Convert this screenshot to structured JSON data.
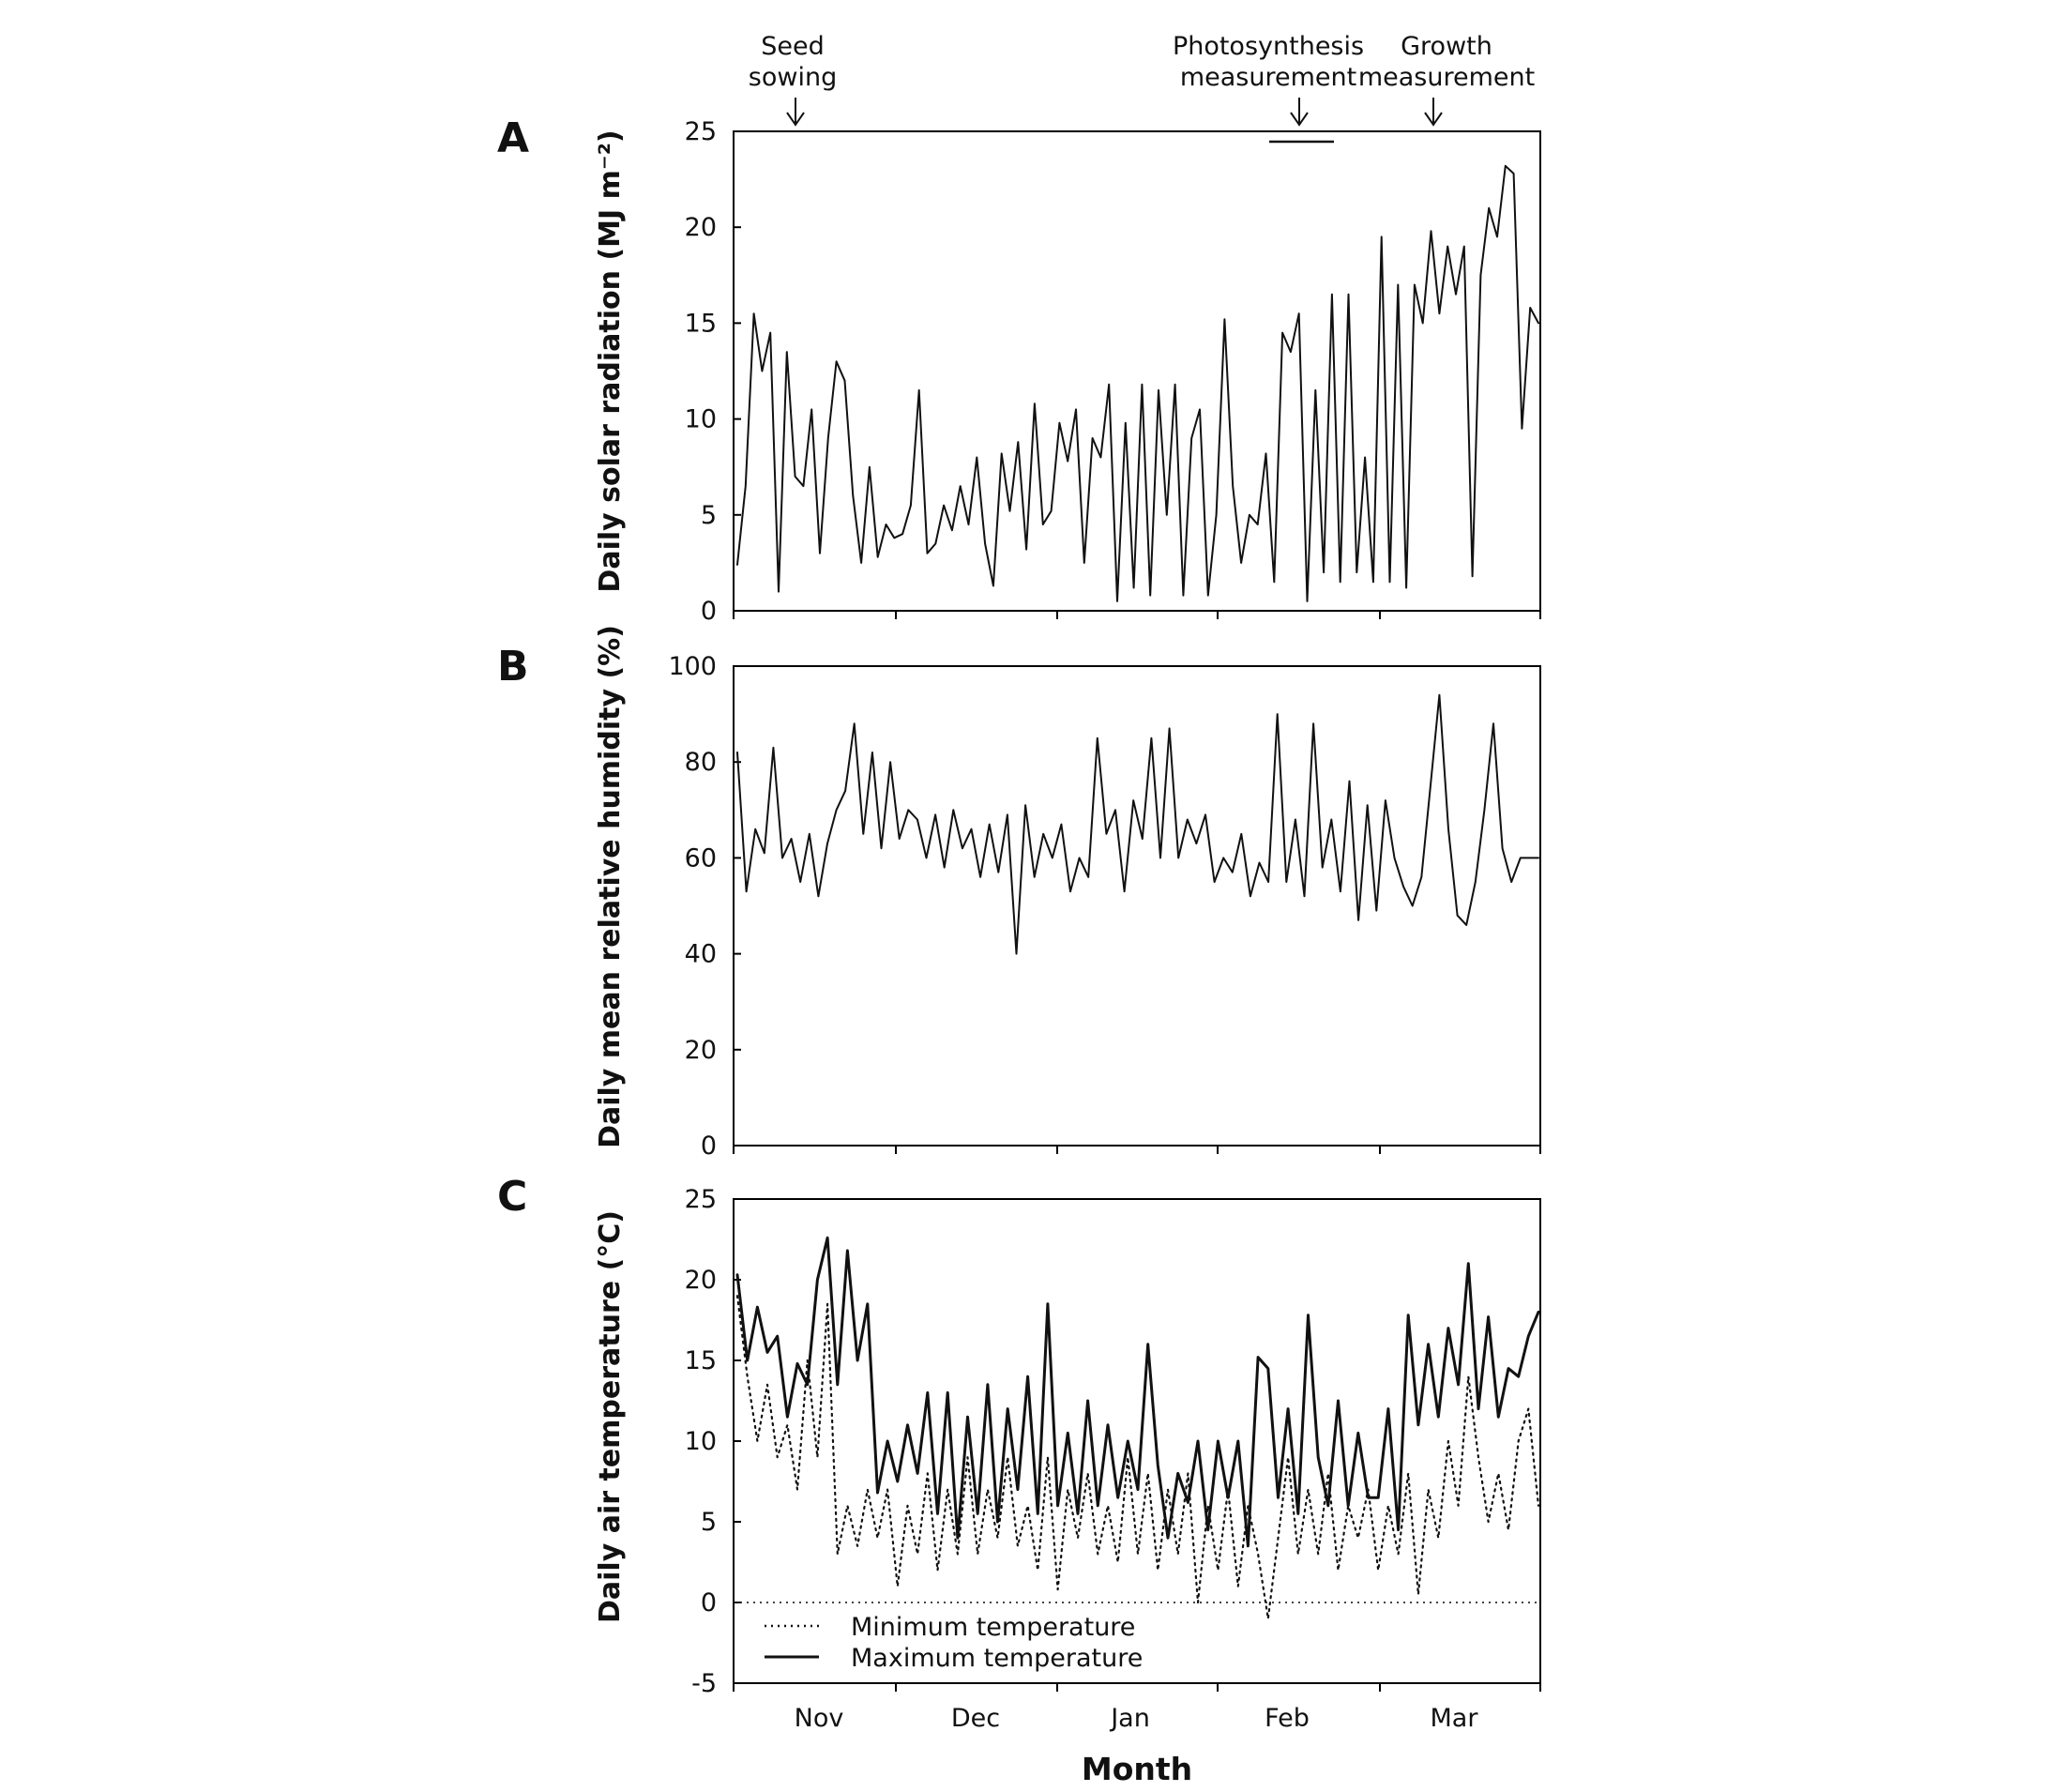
{
  "chart_data": [
    {
      "panel": "A",
      "type": "line",
      "ylabel": "Daily solar radiation (MJ m⁻²)",
      "ylim": [
        0,
        25
      ],
      "yticks": [
        0,
        5,
        10,
        15,
        20,
        25
      ],
      "xlabel": "",
      "annotations": [
        {
          "label_lines": [
            "Seed",
            "sowing"
          ],
          "day": 8
        },
        {
          "label_lines": [
            "Photosynthesis",
            "measurement"
          ],
          "day": 85,
          "period": [
            80,
            92
          ]
        },
        {
          "label_lines": [
            "Growth",
            "measurement"
          ],
          "day": 110
        }
      ],
      "series": [
        {
          "name": "Daily solar radiation",
          "style": "solid",
          "values": [
            2.4,
            6.5,
            15.5,
            12.5,
            14.5,
            1,
            13.5,
            7,
            6.5,
            10.5,
            3,
            9,
            13,
            12,
            6,
            2.5,
            7.5,
            2.8,
            4.5,
            3.8,
            4,
            5.5,
            11.5,
            3,
            3.5,
            5.5,
            4.2,
            6.5,
            4.5,
            8,
            3.5,
            1.3,
            8.2,
            5.2,
            8.8,
            3.2,
            10.8,
            4.5,
            5.2,
            9.8,
            7.8,
            10.5,
            2.5,
            9,
            8,
            11.8,
            0.5,
            9.8,
            1.2,
            11.8,
            0.8,
            11.5,
            5,
            11.8,
            0.8,
            9,
            10.5,
            0.8,
            5,
            15.2,
            6.5,
            2.5,
            5,
            4.5,
            8.2,
            1.5,
            14.5,
            13.5,
            15.5,
            0.5,
            11.5,
            2,
            16.5,
            1.5,
            16.5,
            2,
            8,
            1.5,
            19.5,
            1.5,
            17,
            1.2,
            17,
            15,
            19.8,
            15.5,
            19,
            16.5,
            19,
            1.8,
            17.5,
            21,
            19.5,
            23.2,
            22.8,
            9.5,
            15.8,
            15
          ]
        }
      ]
    },
    {
      "panel": "B",
      "type": "line",
      "ylabel": "Daily mean relative humidity (%)",
      "ylim": [
        0,
        100
      ],
      "yticks": [
        0,
        20,
        40,
        60,
        80,
        100
      ],
      "xlabel": "",
      "series": [
        {
          "name": "Daily mean relative humidity",
          "style": "solid",
          "values": [
            82,
            53,
            66,
            61,
            83,
            60,
            64,
            55,
            65,
            52,
            63,
            70,
            74,
            88,
            65,
            82,
            62,
            80,
            64,
            70,
            68,
            60,
            69,
            58,
            70,
            62,
            66,
            56,
            67,
            57,
            69,
            40,
            71,
            56,
            65,
            60,
            67,
            53,
            60,
            56,
            85,
            65,
            70,
            53,
            72,
            64,
            85,
            60,
            87,
            60,
            68,
            63,
            69,
            55,
            60,
            57,
            65,
            52,
            59,
            55,
            90,
            55,
            68,
            52,
            88,
            58,
            68,
            53,
            76,
            47,
            71,
            49,
            72,
            60,
            54,
            50,
            56,
            75,
            94,
            66,
            48,
            46,
            55,
            70,
            88,
            62,
            55,
            60,
            60,
            60
          ]
        }
      ]
    },
    {
      "panel": "C",
      "type": "line",
      "ylabel": "Daily air temperature (°C)",
      "ylim": [
        -5,
        25
      ],
      "yticks": [
        -5,
        0,
        5,
        10,
        15,
        20,
        25
      ],
      "xlabel": "Month",
      "legend_position": "bottom-left",
      "series": [
        {
          "name": "Minimum temperature",
          "style": "dotted",
          "values": [
            19,
            14,
            10,
            13.5,
            9,
            11,
            7,
            15,
            9,
            18.5,
            3,
            6,
            3.5,
            7,
            4,
            7,
            1,
            6,
            3,
            8,
            2,
            7,
            3,
            9,
            3,
            7,
            4,
            9,
            3.5,
            6,
            2,
            9,
            0.8,
            7,
            4,
            8,
            3,
            6,
            2.5,
            9,
            3,
            8,
            2,
            7,
            3,
            8,
            0,
            6,
            2,
            7,
            1,
            6,
            3,
            -1,
            4,
            9,
            3,
            7,
            3,
            8,
            2,
            6,
            4,
            7,
            2,
            6,
            3,
            8,
            0.5,
            7,
            4,
            10,
            6,
            14,
            9,
            5,
            8,
            4.5,
            10,
            12,
            6
          ]
        },
        {
          "name": "Maximum temperature",
          "style": "solid",
          "values": [
            20.3,
            15,
            18.3,
            15.5,
            16.5,
            11.5,
            14.8,
            13.5,
            20,
            22.6,
            13.5,
            21.8,
            15,
            18.5,
            6.8,
            10,
            7.5,
            11,
            8,
            13,
            5.5,
            13,
            4,
            11.5,
            5.5,
            13.5,
            5,
            12,
            7,
            14,
            5.5,
            18.5,
            6,
            10.5,
            5.5,
            12.5,
            6,
            11,
            6.5,
            10,
            7,
            16,
            8.5,
            4,
            8,
            6.2,
            10,
            4.5,
            10,
            6.5,
            10,
            3.5,
            15.2,
            14.5,
            6.5,
            12,
            5.5,
            17.8,
            9,
            6,
            12.5,
            6,
            10.5,
            6.5,
            6.5,
            12,
            4.5,
            17.8,
            11,
            16,
            11.5,
            17,
            13.5,
            21,
            12,
            17.7,
            11.5,
            14.5,
            14,
            16.5,
            18
          ]
        }
      ]
    }
  ],
  "months": [
    "Nov",
    "Dec",
    "Jan",
    "Feb",
    "Mar"
  ],
  "xlabel": "Month",
  "panels": {
    "a": "A",
    "b": "B",
    "c": "C"
  },
  "annotations": {
    "seed_line1": "Seed",
    "seed_line2": "sowing",
    "photo_line1": "Photosynthesis",
    "photo_line2": "measurement",
    "growth_line1": "Growth",
    "growth_line2": "measurement"
  },
  "legend": {
    "min": "Minimum temperature",
    "max": "Maximum temperature"
  },
  "colors": {
    "line": "#111111",
    "axis": "#000000",
    "background": "#ffffff"
  }
}
